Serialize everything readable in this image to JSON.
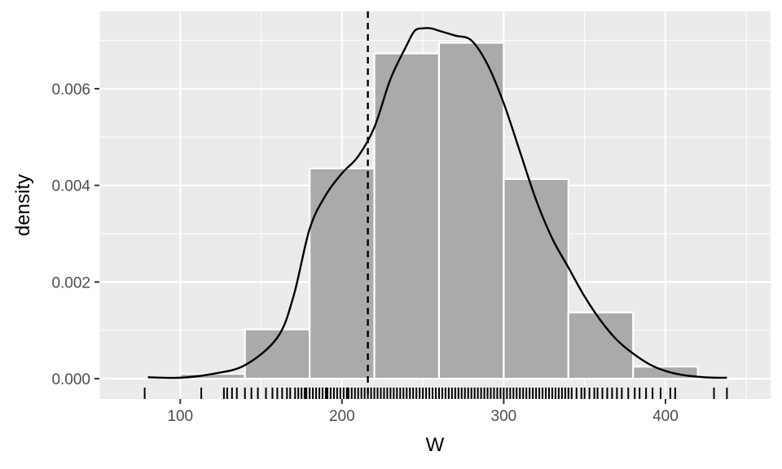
{
  "chart_data": {
    "type": "histogram",
    "xlabel": "W",
    "ylabel": "density",
    "xlim": [
      50,
      465
    ],
    "ylim": [
      -0.00042,
      0.0076
    ],
    "x_ticks": [
      100,
      200,
      300,
      400
    ],
    "y_ticks": [
      0.0,
      0.002,
      0.004,
      0.006
    ],
    "x_tick_labels": [
      "100",
      "200",
      "300",
      "400"
    ],
    "y_tick_labels": [
      "0.000",
      "0.002",
      "0.004",
      "0.006"
    ],
    "grid": true,
    "bins": [
      {
        "x0": 60,
        "x1": 100,
        "density": 0.0
      },
      {
        "x0": 100,
        "x1": 140,
        "density": 0.0001
      },
      {
        "x0": 140,
        "x1": 180,
        "density": 0.00102
      },
      {
        "x0": 180,
        "x1": 220,
        "density": 0.00435
      },
      {
        "x0": 220,
        "x1": 260,
        "density": 0.00673
      },
      {
        "x0": 260,
        "x1": 300,
        "density": 0.00695
      },
      {
        "x0": 300,
        "x1": 340,
        "density": 0.00413
      },
      {
        "x0": 340,
        "x1": 380,
        "density": 0.00137
      },
      {
        "x0": 380,
        "x1": 420,
        "density": 0.00025
      },
      {
        "x0": 420,
        "x1": 460,
        "density": 0.0
      }
    ],
    "density_curve": {
      "x": [
        80,
        100,
        120,
        140,
        160,
        170,
        180,
        190,
        200,
        210,
        220,
        230,
        240,
        245,
        250,
        255,
        260,
        270,
        280,
        290,
        300,
        310,
        320,
        330,
        340,
        350,
        360,
        370,
        380,
        390,
        400,
        410,
        420,
        430,
        438
      ],
      "y": [
        3e-05,
        2e-05,
        0.0001,
        0.00028,
        0.00085,
        0.0017,
        0.0031,
        0.0038,
        0.00425,
        0.0046,
        0.0052,
        0.0062,
        0.0069,
        0.0072,
        0.00725,
        0.00725,
        0.0072,
        0.0071,
        0.007,
        0.0065,
        0.0057,
        0.0047,
        0.0037,
        0.0029,
        0.0023,
        0.0017,
        0.0012,
        0.0008,
        0.00052,
        0.0003,
        0.00016,
        8e-05,
        4e-05,
        2e-05,
        2e-05
      ]
    },
    "vline": {
      "x": 216,
      "style": "dashed"
    },
    "rug": [
      78,
      113,
      127,
      129,
      132,
      135,
      140,
      144,
      148,
      153,
      157,
      160,
      163,
      166,
      168,
      171,
      173,
      175,
      177,
      178,
      180,
      182,
      184,
      186,
      188,
      190,
      191,
      193,
      195,
      197,
      199,
      201,
      203,
      204,
      206,
      208,
      210,
      212,
      214,
      216,
      218,
      220,
      222,
      224,
      226,
      228,
      230,
      232,
      234,
      236,
      238,
      240,
      242,
      244,
      246,
      248,
      250,
      252,
      254,
      256,
      258,
      260,
      262,
      264,
      266,
      268,
      270,
      272,
      274,
      276,
      278,
      280,
      282,
      284,
      286,
      288,
      290,
      292,
      294,
      296,
      298,
      300,
      302,
      304,
      306,
      308,
      310,
      312,
      314,
      316,
      318,
      320,
      322,
      324,
      326,
      328,
      330,
      332,
      334,
      336,
      338,
      340,
      342,
      345,
      348,
      350,
      353,
      356,
      358,
      361,
      364,
      367,
      370,
      373,
      377,
      381,
      384,
      388,
      392,
      397,
      403,
      406,
      430,
      438
    ]
  }
}
